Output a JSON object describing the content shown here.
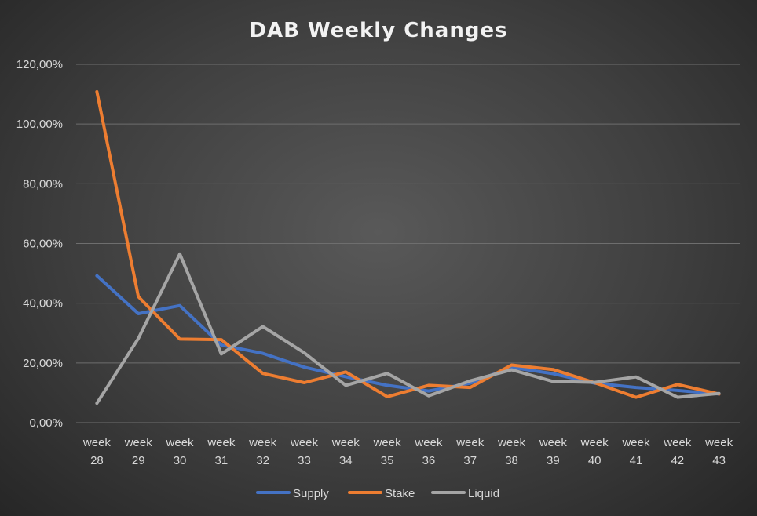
{
  "chart_data": {
    "type": "line",
    "title": "DAB Weekly Changes",
    "xlabel": "",
    "ylabel": "",
    "categories": [
      [
        "week",
        "28"
      ],
      [
        "week",
        "29"
      ],
      [
        "week",
        "30"
      ],
      [
        "week",
        "31"
      ],
      [
        "week",
        "32"
      ],
      [
        "week",
        "33"
      ],
      [
        "week",
        "34"
      ],
      [
        "week",
        "35"
      ],
      [
        "week",
        "36"
      ],
      [
        "week",
        "37"
      ],
      [
        "week",
        "38"
      ],
      [
        "week",
        "39"
      ],
      [
        "week",
        "40"
      ],
      [
        "week",
        "41"
      ],
      [
        "week",
        "42"
      ],
      [
        "week",
        "43"
      ]
    ],
    "ylim": [
      0,
      120
    ],
    "yticks": [
      0,
      20,
      40,
      60,
      80,
      100,
      120
    ],
    "ytick_labels": [
      "0,00%",
      "20,00%",
      "40,00%",
      "60,00%",
      "80,00%",
      "100,00%",
      "120,00%"
    ],
    "grid": true,
    "legend_position": "bottom",
    "series": [
      {
        "name": "Supply",
        "color": "#4472c4",
        "values": [
          49.2,
          36.5,
          39.2,
          26.0,
          23.2,
          18.6,
          15.4,
          12.5,
          10.6,
          13.2,
          18.5,
          16.4,
          13.2,
          11.8,
          10.8,
          9.6
        ]
      },
      {
        "name": "Stake",
        "color": "#ed7d31",
        "values": [
          110.8,
          42.2,
          28.0,
          27.8,
          16.5,
          13.4,
          17.0,
          8.7,
          12.5,
          11.8,
          19.3,
          17.8,
          13.4,
          8.5,
          12.8,
          9.6
        ]
      },
      {
        "name": "Liquid",
        "color": "#a5a5a5",
        "values": [
          6.5,
          28.2,
          56.5,
          23.0,
          32.2,
          23.4,
          12.5,
          16.5,
          9.0,
          14.0,
          17.7,
          13.8,
          13.5,
          15.3,
          8.5,
          9.8
        ]
      }
    ]
  }
}
